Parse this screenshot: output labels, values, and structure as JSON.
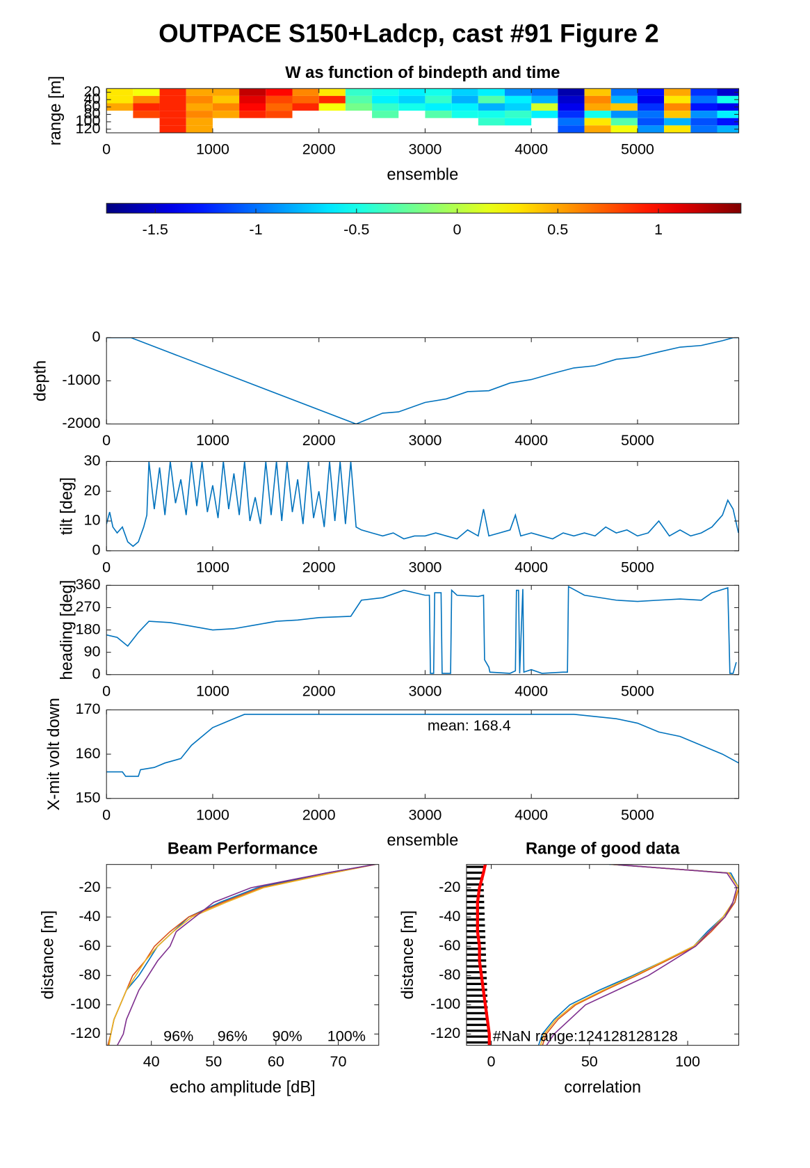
{
  "title": "OUTPACE S150+Ladcp, cast #91 Figure 2",
  "chart_data": [
    {
      "type": "heatmap",
      "title": "W as function of bindepth and time",
      "xlabel": "ensemble",
      "ylabel": "range [m]",
      "colormap": "jet",
      "clim": [
        -1.742,
        1.41
      ],
      "xlim": [
        0,
        5953
      ],
      "ylim": [
        10,
        130
      ],
      "ydir": "reverse",
      "xticks": [
        0,
        1000,
        2000,
        3000,
        4000,
        5000
      ],
      "yticks": [
        20,
        40,
        60,
        80,
        100,
        120
      ],
      "x": [
        125,
        375,
        625,
        875,
        1125,
        1375,
        1625,
        1875,
        2125,
        2375,
        2625,
        2875,
        3125,
        3375,
        3625,
        3875,
        4125,
        4375,
        4625,
        4875,
        5125,
        5375,
        5625,
        5875
      ],
      "y": [
        20,
        40,
        60,
        80,
        100,
        120
      ],
      "values": [
        [
          0.3,
          0.3,
          0.5,
          null,
          null,
          null
        ],
        [
          0.2,
          0.6,
          0.9,
          0.8,
          null,
          null
        ],
        [
          0.9,
          0.9,
          0.9,
          0.9,
          0.9,
          0.9
        ],
        [
          0.5,
          0.6,
          0.5,
          0.6,
          0.5,
          0.5
        ],
        [
          0.5,
          0.4,
          0.6,
          0.5,
          null,
          null
        ],
        [
          1.2,
          1.1,
          1.0,
          0.9,
          null,
          null
        ],
        [
          1.0,
          0.8,
          0.7,
          0.8,
          null,
          null
        ],
        [
          0.6,
          0.7,
          0.9,
          null,
          null,
          null
        ],
        [
          0.3,
          0.9,
          0.2,
          null,
          null,
          null
        ],
        [
          -0.4,
          -0.3,
          -0.2,
          null,
          null,
          null
        ],
        [
          -0.5,
          -0.6,
          -0.4,
          -0.3,
          null,
          null
        ],
        [
          -0.6,
          -0.7,
          -0.5,
          null,
          null,
          null
        ],
        [
          -0.5,
          -0.4,
          -0.6,
          -0.3,
          null,
          null
        ],
        [
          -0.7,
          -0.8,
          -0.6,
          -0.5,
          null,
          null
        ],
        [
          -0.6,
          -0.3,
          -0.8,
          -0.5,
          -0.4,
          null
        ],
        [
          -0.9,
          -0.6,
          -0.7,
          -0.4,
          -0.5,
          null
        ],
        [
          -1.0,
          -0.8,
          0.1,
          -0.6,
          null,
          null
        ],
        [
          -1.6,
          -1.5,
          -1.4,
          -1.2,
          -1.0,
          -1.1
        ],
        [
          0.4,
          0.6,
          0.5,
          -0.5,
          0.3,
          0.5
        ],
        [
          -1.0,
          -0.8,
          0.4,
          -0.9,
          -0.3,
          0.2
        ],
        [
          -1.3,
          -1.4,
          -1.2,
          -1.0,
          -1.1,
          -0.9
        ],
        [
          0.5,
          0.3,
          0.6,
          0.4,
          -0.8,
          0.3
        ],
        [
          -1.2,
          -1.0,
          -1.3,
          -0.9,
          -1.1,
          -1.0
        ],
        [
          -1.5,
          -0.5,
          -1.4,
          -0.6,
          -1.3,
          -0.8
        ]
      ]
    },
    {
      "type": "colorbar",
      "colormap": "jet",
      "xlim": [
        -1.742,
        1.41
      ],
      "xticks": [
        -1.5,
        -1,
        -0.5,
        0,
        0.5,
        1
      ]
    },
    {
      "type": "line",
      "ylabel": "depth",
      "color": "#0072bd",
      "xlim": [
        0,
        5953
      ],
      "ylim": [
        -2000,
        0
      ],
      "xticks": [
        0,
        1000,
        2000,
        3000,
        4000,
        5000
      ],
      "yticks": [
        -2000,
        -1000,
        0
      ],
      "x": [
        0,
        230,
        2350,
        2600,
        2750,
        3000,
        3200,
        3400,
        3600,
        3800,
        4000,
        4200,
        4400,
        4600,
        4800,
        5000,
        5200,
        5400,
        5600,
        5800,
        5900,
        5953
      ],
      "values": [
        0,
        0,
        -2000,
        -1750,
        -1720,
        -1500,
        -1420,
        -1250,
        -1230,
        -1050,
        -970,
        -830,
        -700,
        -650,
        -500,
        -450,
        -330,
        -220,
        -180,
        -70,
        0,
        0
      ]
    },
    {
      "type": "line",
      "ylabel": "tilt [deg]",
      "color": "#0072bd",
      "xlim": [
        0,
        5953
      ],
      "ylim": [
        0,
        30
      ],
      "xticks": [
        0,
        1000,
        2000,
        3000,
        4000,
        5000
      ],
      "yticks": [
        0,
        10,
        20,
        30
      ],
      "x": [
        0,
        30,
        60,
        100,
        150,
        200,
        250,
        300,
        350,
        380,
        400,
        450,
        500,
        550,
        600,
        650,
        700,
        750,
        800,
        850,
        900,
        950,
        1000,
        1050,
        1100,
        1150,
        1200,
        1250,
        1300,
        1350,
        1400,
        1450,
        1500,
        1550,
        1600,
        1650,
        1700,
        1750,
        1800,
        1850,
        1900,
        1950,
        2000,
        2050,
        2100,
        2150,
        2200,
        2250,
        2300,
        2350,
        2400,
        2500,
        2600,
        2700,
        2800,
        2900,
        3000,
        3100,
        3200,
        3300,
        3400,
        3500,
        3550,
        3600,
        3700,
        3800,
        3850,
        3900,
        4000,
        4100,
        4200,
        4300,
        4400,
        4500,
        4600,
        4700,
        4800,
        4900,
        5000,
        5100,
        5200,
        5300,
        5400,
        5500,
        5600,
        5700,
        5800,
        5850,
        5900,
        5950
      ],
      "values": [
        9,
        13,
        8,
        6,
        8,
        3,
        1.5,
        3,
        8,
        12,
        30,
        14,
        28,
        12,
        30,
        16,
        24,
        12,
        30,
        15,
        30,
        13,
        22,
        11,
        30,
        14,
        26,
        12,
        30,
        10,
        18,
        9,
        30,
        12,
        30,
        10,
        30,
        13,
        24,
        9,
        30,
        11,
        20,
        8,
        30,
        10,
        30,
        9,
        30,
        8,
        7,
        6,
        5,
        6,
        4,
        5,
        5,
        6,
        5,
        4,
        7,
        5,
        14,
        5,
        6,
        7,
        12,
        5,
        6,
        5,
        4,
        6,
        5,
        6,
        5,
        8,
        6,
        7,
        5,
        6,
        10,
        5,
        7,
        5,
        6,
        8,
        12,
        17,
        14,
        6
      ]
    },
    {
      "type": "line",
      "ylabel": "heading [deg]",
      "color": "#0072bd",
      "xlim": [
        0,
        5953
      ],
      "ylim": [
        0,
        360
      ],
      "xticks": [
        0,
        1000,
        2000,
        3000,
        4000,
        5000
      ],
      "yticks": [
        0,
        90,
        180,
        270,
        360
      ],
      "x": [
        0,
        100,
        200,
        300,
        400,
        600,
        800,
        1000,
        1200,
        1400,
        1600,
        1800,
        2000,
        2300,
        2400,
        2600,
        2800,
        3000,
        3040,
        3050,
        3080,
        3090,
        3150,
        3160,
        3240,
        3250,
        3300,
        3500,
        3550,
        3560,
        3600,
        3610,
        3800,
        3850,
        3860,
        3880,
        3890,
        3920,
        3930,
        4000,
        4100,
        4300,
        4340,
        4350,
        4500,
        4800,
        5000,
        5200,
        5400,
        5600,
        5700,
        5850,
        5870,
        5900,
        5930
      ],
      "values": [
        160,
        150,
        115,
        170,
        215,
        210,
        195,
        180,
        185,
        200,
        215,
        220,
        230,
        235,
        300,
        310,
        340,
        320,
        320,
        5,
        5,
        330,
        330,
        5,
        5,
        340,
        320,
        315,
        320,
        60,
        30,
        10,
        5,
        15,
        340,
        340,
        5,
        345,
        10,
        20,
        5,
        10,
        10,
        355,
        320,
        300,
        295,
        300,
        305,
        300,
        330,
        350,
        5,
        5,
        50
      ]
    },
    {
      "type": "line",
      "ylabel": "X-mit volt down",
      "xlabel": "ensemble",
      "annotation": "mean: 168.4",
      "color": "#0072bd",
      "xlim": [
        0,
        5953
      ],
      "ylim": [
        150,
        170
      ],
      "xticks": [
        0,
        1000,
        2000,
        3000,
        4000,
        5000
      ],
      "yticks": [
        150,
        160,
        170
      ],
      "x": [
        0,
        150,
        180,
        300,
        320,
        450,
        550,
        700,
        800,
        900,
        1000,
        1100,
        1200,
        1300,
        2000,
        3000,
        4400,
        4800,
        5000,
        5200,
        5400,
        5600,
        5800,
        5953
      ],
      "values": [
        156,
        156,
        155,
        155,
        156.5,
        157,
        158,
        159,
        162,
        164,
        166,
        167,
        168,
        169,
        169,
        169,
        169,
        168,
        167,
        165,
        164,
        162,
        160,
        158
      ]
    },
    {
      "type": "profile",
      "title": "Beam Performance",
      "xlabel": "echo amplitude [dB]",
      "ylabel": "distance [m]",
      "xlim": [
        32.8,
        76.5
      ],
      "ylim": [
        -127.7,
        -4.1
      ],
      "xticks": [
        40,
        50,
        60,
        70
      ],
      "yticks": [
        -120,
        -100,
        -80,
        -60,
        -40,
        -20
      ],
      "annotations": [
        "96%",
        "96%",
        "90%",
        "100%"
      ],
      "y": [
        -4,
        -10,
        -20,
        -30,
        -40,
        -50,
        -60,
        -70,
        -80,
        -90,
        -100,
        -110,
        -120,
        -128
      ],
      "series": [
        {
          "color": "#0072bd",
          "values": [
            76,
            68,
            57,
            51,
            46,
            43.5,
            41,
            39.5,
            38,
            36,
            35,
            34,
            33.5,
            33
          ]
        },
        {
          "color": "#d95319",
          "values": [
            76,
            69,
            57.5,
            51.5,
            46,
            43,
            40.5,
            39,
            37,
            36,
            35,
            34,
            33.5,
            33
          ]
        },
        {
          "color": "#edb120",
          "values": [
            76,
            69,
            58,
            52,
            46.5,
            43.5,
            41,
            39,
            37.5,
            36,
            35,
            34,
            33.5,
            33.2
          ]
        },
        {
          "color": "#7e2f8e",
          "values": [
            76,
            68,
            56,
            50,
            47,
            44,
            43,
            41,
            39.5,
            38,
            37,
            36,
            35.5,
            34.5
          ]
        }
      ]
    },
    {
      "type": "profile",
      "title": "Range of good data",
      "xlabel": "correlation",
      "ylabel": "distance [m]",
      "xlim": [
        -12.6,
        126
      ],
      "ylim": [
        -127.7,
        -4.1
      ],
      "xticks": [
        0,
        50,
        100
      ],
      "yticks": [
        -120,
        -100,
        -80,
        -60,
        -40,
        -20
      ],
      "annotations": [
        "#NaN range:124128128128"
      ],
      "y": [
        -4,
        -10,
        -20,
        -30,
        -40,
        -50,
        -60,
        -70,
        -80,
        -90,
        -100,
        -110,
        -120,
        -128
      ],
      "bar_color": "#000000",
      "bar_y": [
        -6,
        -10,
        -14,
        -18,
        -22,
        -26,
        -30,
        -34,
        -38,
        -42,
        -46,
        -50,
        -54,
        -58,
        -62,
        -66,
        -70,
        -74,
        -78,
        -82,
        -86,
        -90,
        -94,
        -98,
        -102,
        -106,
        -110,
        -114,
        -118,
        -122,
        -126
      ],
      "bar_values": [
        -4,
        -4,
        -4,
        -3.9,
        -3.8,
        -3.7,
        -3.6,
        -3.5,
        -3.4,
        -3.3,
        -3.2,
        -3.1,
        -3,
        -2.9,
        -2.8,
        -2.7,
        -2.6,
        -2.5,
        -2.4,
        -2.3,
        -2.2,
        -2.1,
        -2,
        -1.9,
        -1.8,
        -1.7,
        -1.6,
        -1.5,
        -1.4,
        -1.3,
        -1.2
      ],
      "series": [
        {
          "color": "#ff0000",
          "width": 4,
          "values": [
            -3,
            -4,
            -6,
            -7,
            -7,
            -7,
            -6,
            -6,
            -5,
            -4,
            -3,
            -2,
            -1,
            -1
          ]
        },
        {
          "color": "#0072bd",
          "values": [
            60,
            122,
            126,
            124,
            118,
            110,
            103,
            88,
            72,
            55,
            40,
            32,
            26,
            24
          ]
        },
        {
          "color": "#d95319",
          "values": [
            61,
            121,
            126,
            124,
            119,
            112,
            104,
            89,
            74,
            58,
            43,
            34,
            28,
            26
          ]
        },
        {
          "color": "#edb120",
          "values": [
            61,
            121,
            126,
            123,
            118,
            111,
            103,
            88,
            73,
            57,
            42,
            33,
            27,
            25
          ]
        },
        {
          "color": "#7e2f8e",
          "values": [
            62,
            120,
            125,
            123,
            119,
            111,
            104,
            92,
            80,
            64,
            48,
            40,
            32,
            28
          ]
        }
      ]
    }
  ]
}
